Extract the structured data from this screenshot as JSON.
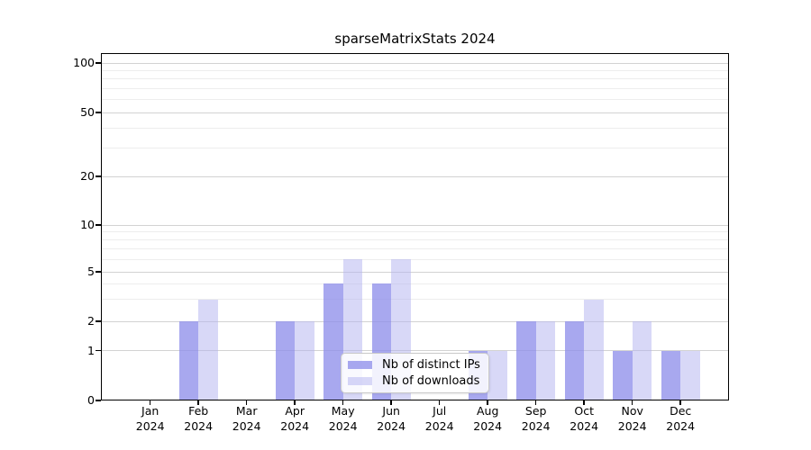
{
  "chart_data": {
    "type": "bar",
    "title": "sparseMatrixStats 2024",
    "year_label": "2024",
    "categories": [
      "Jan",
      "Feb",
      "Mar",
      "Apr",
      "May",
      "Jun",
      "Jul",
      "Aug",
      "Sep",
      "Oct",
      "Nov",
      "Dec"
    ],
    "series": [
      {
        "name": "Nb of distinct IPs",
        "color": "rgba(143,143,235,0.78)",
        "values": [
          0,
          2,
          0,
          2,
          4,
          4,
          0,
          1,
          2,
          2,
          1,
          1
        ]
      },
      {
        "name": "Nb of downloads",
        "color": "rgba(177,177,240,0.5)",
        "values": [
          0,
          3,
          0,
          2,
          6,
          6,
          0,
          1,
          2,
          3,
          2,
          1
        ]
      }
    ],
    "y_axis": {
      "ticks": [
        0,
        1,
        2,
        5,
        10,
        20,
        50,
        100
      ],
      "minor_ticks": [
        3,
        4,
        6,
        7,
        8,
        9,
        30,
        40,
        60,
        70,
        80,
        90
      ],
      "range": [
        0,
        100
      ],
      "scale": "log-like"
    },
    "legend": {
      "position": "inside-bottom-center"
    },
    "grid": true,
    "colors": {
      "major_gridline": "#d2d2d2",
      "minor_gridline": "#ededed",
      "axis": "#000000",
      "background": "#ffffff"
    }
  }
}
